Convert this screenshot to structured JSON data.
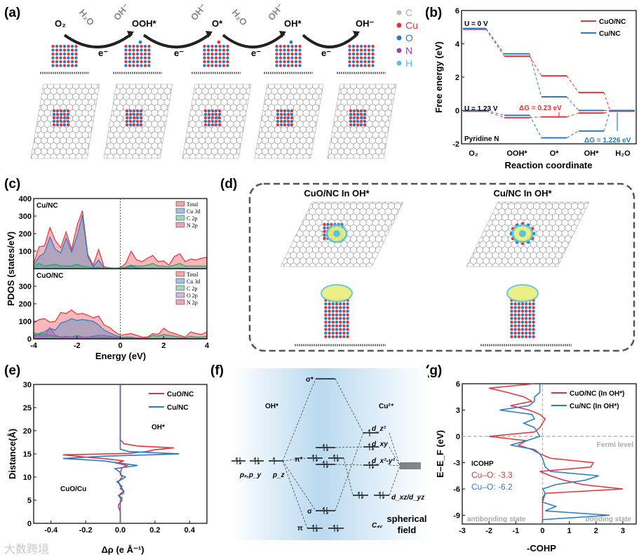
{
  "colors": {
    "red": "#e8333b",
    "blue": "#2a7ac4",
    "green": "#2ba36a",
    "purple": "#9b59b6",
    "gray": "#999999",
    "cyan": "#4fc3e8"
  },
  "panel_labels": {
    "a": "(a)",
    "b": "(b)",
    "c": "(c)",
    "d": "(d)",
    "e": "(e)",
    "f": "(f)",
    "g": "(g)"
  },
  "panel_a": {
    "species": [
      "O₂",
      "OOH*",
      "O*",
      "OH*",
      "OH⁻"
    ],
    "reagents": [
      "H₂O",
      "OH⁻",
      "OH⁻",
      "H₂O",
      "OH⁻"
    ],
    "electron": "e⁻",
    "legend": [
      {
        "label": "C",
        "color": "#bbbbbb"
      },
      {
        "label": "Cu",
        "color": "#e8333b"
      },
      {
        "label": "O",
        "color": "#2a7ac4"
      },
      {
        "label": "N",
        "color": "#8e44ad"
      },
      {
        "label": "H",
        "color": "#4fc3e8"
      }
    ]
  },
  "panel_d": {
    "left_title": "CuO/NC In OH*",
    "right_title": "Cu/NC In OH*"
  },
  "panel_f": {
    "left_title": "OH*",
    "right_title": "Cu²⁺",
    "sigma_star": "σ*",
    "pi_star": "π*",
    "sigma": "σ",
    "pi": "π",
    "pxpy": "pₓ,p_y",
    "pz": "p_z",
    "dz2": "d_z²",
    "dxy": "d_xy",
    "dx2y2": "d_x²-y²",
    "dxzdyz": "d_xz/d_yz",
    "c4v": "C₄ᵥ",
    "spherical": "spherical",
    "field": "field"
  },
  "watermark": "大数跨境",
  "chart_data": [
    {
      "id": "b",
      "type": "line",
      "xlabel": "Reaction coordinate",
      "ylabel": "Free energy (eV)",
      "categories": [
        "O₂",
        "OOH*",
        "O*",
        "OH*",
        "H₂O"
      ],
      "ylim": [
        -2,
        6
      ],
      "yticks": [
        6,
        4,
        2,
        0,
        -2
      ],
      "series": [
        {
          "name": "CuO/NC",
          "potential": "U = 0 V",
          "values": [
            4.92,
            3.3,
            2.12,
            1.12,
            0
          ]
        },
        {
          "name": "Cu/NC",
          "potential": "U = 0 V",
          "values": [
            4.92,
            3.4,
            0.82,
            0.0,
            0
          ]
        },
        {
          "name": "CuO/NC",
          "potential": "U = 1.23 V",
          "values": [
            0,
            -0.39,
            -0.34,
            -0.11,
            0
          ]
        },
        {
          "name": "Cu/NC",
          "potential": "U = 1.23 V",
          "values": [
            0,
            -0.29,
            -1.64,
            -1.23,
            0
          ]
        }
      ],
      "legend": [
        "CuO/NC",
        "Cu/NC"
      ],
      "legend_position": "top-right",
      "annotations": {
        "u0": "U = 0 V",
        "u123": "U = 1.23 V",
        "site": "Pyridine N",
        "dg_cuo": "ΔG = 0.23 eV",
        "dg_cu": "ΔG = 1.226 eV"
      }
    },
    {
      "id": "c",
      "type": "area",
      "xlabel": "Energy (eV)",
      "ylabel": "PDOS (states/eV)",
      "xlim": [
        -4,
        4
      ],
      "xticks": [
        -4,
        -2,
        0,
        2,
        4
      ],
      "ylim": [
        0,
        400
      ],
      "yticks_top": [
        400,
        300,
        200,
        100
      ],
      "yticks_bottom": [
        400,
        300,
        200,
        100,
        0
      ],
      "x": [
        -4,
        -3.75,
        -3.5,
        -3.25,
        -3,
        -2.75,
        -2.5,
        -2.25,
        -2,
        -1.75,
        -1.5,
        -1.25,
        -1,
        -0.75,
        -0.5,
        -0.25,
        0,
        0.25,
        0.5,
        0.75,
        1,
        1.25,
        1.5,
        1.75,
        2,
        2.25,
        2.5,
        2.75,
        3,
        3.25,
        3.5,
        3.75,
        4
      ],
      "panels": [
        {
          "title": "Cu/NC",
          "legend": [
            "Total",
            "Cu 3d",
            "C 2p",
            "N 2p"
          ],
          "series": [
            {
              "name": "Total",
              "values": [
                30,
                125,
                130,
                235,
                160,
                120,
                210,
                110,
                245,
                330,
                80,
                20,
                110,
                10,
                5,
                3,
                5,
                30,
                100,
                50,
                40,
                60,
                75,
                40,
                45,
                20,
                70,
                85,
                40,
                55,
                50,
                60,
                65
              ]
            },
            {
              "name": "Cu 3d",
              "values": [
                20,
                70,
                90,
                180,
                110,
                90,
                175,
                95,
                185,
                305,
                70,
                10,
                50,
                3,
                1,
                0,
                1,
                2,
                15,
                5,
                3,
                3,
                3,
                2,
                2,
                1,
                2,
                3,
                2,
                2,
                2,
                2,
                2
              ]
            },
            {
              "name": "C 2p",
              "values": [
                10,
                30,
                15,
                20,
                25,
                15,
                15,
                15,
                25,
                15,
                10,
                5,
                8,
                2,
                1,
                1,
                2,
                10,
                20,
                15,
                15,
                20,
                30,
                15,
                15,
                10,
                20,
                30,
                15,
                15,
                15,
                15,
                15
              ]
            }
          ]
        },
        {
          "title": "CuO/NC",
          "legend": [
            "Total",
            "Cu 3d",
            "C 2p",
            "O 2p",
            "N 2p"
          ],
          "series": [
            {
              "name": "Total",
              "values": [
                90,
                110,
                115,
                95,
                100,
                150,
                145,
                165,
                140,
                145,
                135,
                120,
                130,
                80,
                65,
                40,
                20,
                25,
                30,
                20,
                10,
                10,
                30,
                25,
                60,
                40,
                30,
                20,
                10,
                40,
                30,
                25,
                40
              ]
            },
            {
              "name": "Cu 3d",
              "values": [
                20,
                30,
                40,
                60,
                50,
                90,
                100,
                115,
                105,
                110,
                105,
                100,
                80,
                50,
                35,
                20,
                10,
                5,
                5,
                3,
                2,
                2,
                2,
                2,
                3,
                3,
                2,
                2,
                2,
                2,
                2,
                2,
                2
              ]
            },
            {
              "name": "C 2p",
              "values": [
                35,
                25,
                30,
                20,
                15,
                10,
                15,
                10,
                20,
                10,
                10,
                10,
                10,
                8,
                10,
                10,
                8,
                10,
                10,
                5,
                5,
                5,
                20,
                15,
                25,
                20,
                15,
                10,
                5,
                15,
                10,
                10,
                15
              ]
            },
            {
              "name": "O 2p",
              "values": [
                15,
                20,
                15,
                65,
                20,
                10,
                10,
                10,
                10,
                10,
                10,
                15,
                20,
                20,
                15,
                10,
                5,
                5,
                5,
                5,
                3,
                2,
                2,
                2,
                2,
                2,
                2,
                2,
                2,
                2,
                2,
                2,
                2
              ]
            }
          ]
        }
      ]
    },
    {
      "id": "e",
      "type": "line",
      "xlabel": "Δρ (e Å⁻¹)",
      "ylabel": "Distance(Å)",
      "xlim": [
        -0.5,
        0.5
      ],
      "xticks": [
        "-0.4",
        "-0.2",
        "0.0",
        "0.2",
        "0.4"
      ],
      "ylim": [
        0,
        30
      ],
      "yticks": [
        0,
        5,
        10,
        15,
        20,
        25,
        30
      ],
      "annotations": {
        "top": "OH*",
        "bottom": "CuO/Cu"
      },
      "legend": [
        "CuO/NC",
        "Cu/NC"
      ],
      "legend_position": "top-right",
      "series": [
        {
          "name": "CuO/NC",
          "distance": [
            0,
            2.5,
            3.5,
            4,
            4.5,
            5,
            6,
            7,
            8,
            9,
            10,
            11,
            12,
            12.5,
            13,
            13.5,
            14,
            14.3,
            14.8,
            15.1,
            15.5,
            15.9,
            16.3,
            16.7,
            17.2,
            17.7,
            18,
            30
          ],
          "drho": [
            0,
            0,
            -0.01,
            -0.01,
            0,
            0.01,
            -0.01,
            0.02,
            0,
            -0.01,
            0.01,
            0,
            0.01,
            0.04,
            -0.02,
            0.02,
            -0.1,
            -0.2,
            -0.33,
            0.05,
            0.15,
            0.2,
            0.31,
            0.1,
            0.02,
            0.01,
            0,
            0
          ]
        },
        {
          "name": "Cu/NC",
          "distance": [
            0,
            5,
            5.5,
            6,
            6.5,
            7,
            7.5,
            8,
            9,
            9.5,
            10,
            10.5,
            11,
            11.8,
            12.5,
            13,
            13.5,
            14,
            14.5,
            15,
            15.5,
            16,
            17,
            30
          ],
          "drho": [
            0,
            0,
            0.01,
            -0.01,
            0.02,
            0.02,
            0,
            0.01,
            -0.02,
            0.01,
            0.03,
            0,
            0,
            -0.03,
            0.1,
            0,
            -0.1,
            -0.33,
            -0.1,
            0.34,
            0.05,
            0,
            0,
            0
          ]
        }
      ]
    },
    {
      "id": "g",
      "type": "line",
      "xlabel": "-COHP",
      "ylabel": "E–E_F (eV)",
      "xlim": [
        -3,
        3.5
      ],
      "xticks": [
        -3,
        -2,
        -1,
        0,
        1,
        2,
        3
      ],
      "ylim": [
        -10,
        6
      ],
      "yticks": [
        6,
        3,
        0,
        -3,
        -6,
        -9
      ],
      "legend": [
        "CuO/NC (In OH*)",
        "Cu/NC (In OH*)"
      ],
      "legend_position": "top-right",
      "annotations": {
        "fermi": "Fermi level",
        "anti": "antibonding state",
        "bond": "bonding state",
        "icohp": "ICOHP",
        "icohp_cuo": "Cu–O: -3.3",
        "icohp_cu": "Cu–O: -6.2"
      },
      "energy": [
        -10,
        -9.5,
        -9,
        -8.5,
        -8,
        -7.5,
        -7,
        -6.5,
        -6,
        -5.5,
        -5,
        -4.5,
        -4,
        -3.5,
        -3,
        -2.5,
        -2,
        -1.5,
        -1,
        -0.5,
        0,
        0.5,
        1,
        1.5,
        2,
        2.5,
        3,
        3.5,
        4,
        4.5,
        5,
        5.5,
        6
      ],
      "series": [
        {
          "name": "CuO/NC (In OH*)",
          "values": [
            0,
            0,
            0,
            0,
            0,
            0,
            0.05,
            0.1,
            3.0,
            1.5,
            0.8,
            0.3,
            -0.1,
            1.8,
            1.9,
            0.3,
            -0.1,
            -0.4,
            -0.9,
            -0.6,
            -2.0,
            -0.3,
            -0.1,
            0,
            0.1,
            -0.1,
            -0.5,
            -1.2,
            -0.4,
            -0.7,
            -1.3,
            -2.0,
            -0.3
          ]
        },
        {
          "name": "Cu/NC (In OH*)",
          "values": [
            0,
            0,
            2.5,
            0.1,
            0.5,
            0,
            0,
            0.1,
            0,
            0.5,
            1.6,
            2.1,
            0.3,
            0.1,
            0.05,
            0,
            -0.1,
            -0.3,
            -1.2,
            -0.6,
            -0.1,
            -0.2,
            -0.3,
            -0.7,
            -0.3,
            -0.4,
            -1.6,
            -0.5,
            -0.3,
            -0.3,
            -0.1,
            -0.1,
            -0.1
          ]
        }
      ]
    }
  ]
}
